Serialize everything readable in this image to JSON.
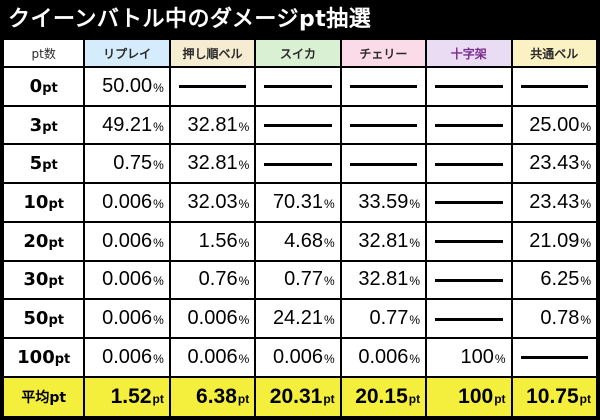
{
  "title": "クイーンバトル中のダメージpt抽選",
  "columns": [
    {
      "label": "pt数",
      "bg": "#ffffff"
    },
    {
      "label": "リプレイ",
      "bg": "#d4ecfb"
    },
    {
      "label": "押し順ベル",
      "bg": "#f5ecd2"
    },
    {
      "label": "スイカ",
      "bg": "#d9f0d3"
    },
    {
      "label": "チェリー",
      "bg": "#fbdbe8"
    },
    {
      "label": "十字架",
      "bg": "#e9dcf3",
      "color": "#7a2e8e"
    },
    {
      "label": "共通ベル",
      "bg": "#fbf2c4"
    }
  ],
  "rows": [
    {
      "label_num": "0",
      "label_unit": "pt",
      "cells": [
        {
          "v": "50.00",
          "u": "%"
        },
        null,
        null,
        null,
        null,
        null
      ]
    },
    {
      "label_num": "3",
      "label_unit": "pt",
      "cells": [
        {
          "v": "49.21",
          "u": "%"
        },
        {
          "v": "32.81",
          "u": "%"
        },
        null,
        null,
        null,
        {
          "v": "25.00",
          "u": "%"
        }
      ]
    },
    {
      "label_num": "5",
      "label_unit": "pt",
      "cells": [
        {
          "v": "0.75",
          "u": "%"
        },
        {
          "v": "32.81",
          "u": "%"
        },
        null,
        null,
        null,
        {
          "v": "23.43",
          "u": "%"
        }
      ]
    },
    {
      "label_num": "10",
      "label_unit": "pt",
      "cells": [
        {
          "v": "0.006",
          "u": "%"
        },
        {
          "v": "32.03",
          "u": "%"
        },
        {
          "v": "70.31",
          "u": "%"
        },
        {
          "v": "33.59",
          "u": "%"
        },
        null,
        {
          "v": "23.43",
          "u": "%"
        }
      ]
    },
    {
      "label_num": "20",
      "label_unit": "pt",
      "cells": [
        {
          "v": "0.006",
          "u": "%"
        },
        {
          "v": "1.56",
          "u": "%"
        },
        {
          "v": "4.68",
          "u": "%"
        },
        {
          "v": "32.81",
          "u": "%"
        },
        null,
        {
          "v": "21.09",
          "u": "%"
        }
      ]
    },
    {
      "label_num": "30",
      "label_unit": "pt",
      "cells": [
        {
          "v": "0.006",
          "u": "%"
        },
        {
          "v": "0.76",
          "u": "%"
        },
        {
          "v": "0.77",
          "u": "%"
        },
        {
          "v": "32.81",
          "u": "%"
        },
        null,
        {
          "v": "6.25",
          "u": "%"
        }
      ]
    },
    {
      "label_num": "50",
      "label_unit": "pt",
      "cells": [
        {
          "v": "0.006",
          "u": "%"
        },
        {
          "v": "0.006",
          "u": "%"
        },
        {
          "v": "24.21",
          "u": "%"
        },
        {
          "v": "0.77",
          "u": "%"
        },
        null,
        {
          "v": "0.78",
          "u": "%"
        }
      ]
    },
    {
      "label_num": "100",
      "label_unit": "pt",
      "cells": [
        {
          "v": "0.006",
          "u": "%"
        },
        {
          "v": "0.006",
          "u": "%"
        },
        {
          "v": "0.006",
          "u": "%"
        },
        {
          "v": "0.006",
          "u": "%"
        },
        {
          "v": "100",
          "u": "%"
        },
        null
      ]
    }
  ],
  "average": {
    "label": "平均pt",
    "cells": [
      {
        "v": "1.52",
        "u": "pt"
      },
      {
        "v": "6.38",
        "u": "pt"
      },
      {
        "v": "20.31",
        "u": "pt"
      },
      {
        "v": "20.15",
        "u": "pt"
      },
      {
        "v": "100",
        "u": "pt"
      },
      {
        "v": "10.75",
        "u": "pt"
      }
    ]
  },
  "colors": {
    "frame": "#000000",
    "average_row": "#f4ef3c",
    "dash": "#000000"
  }
}
